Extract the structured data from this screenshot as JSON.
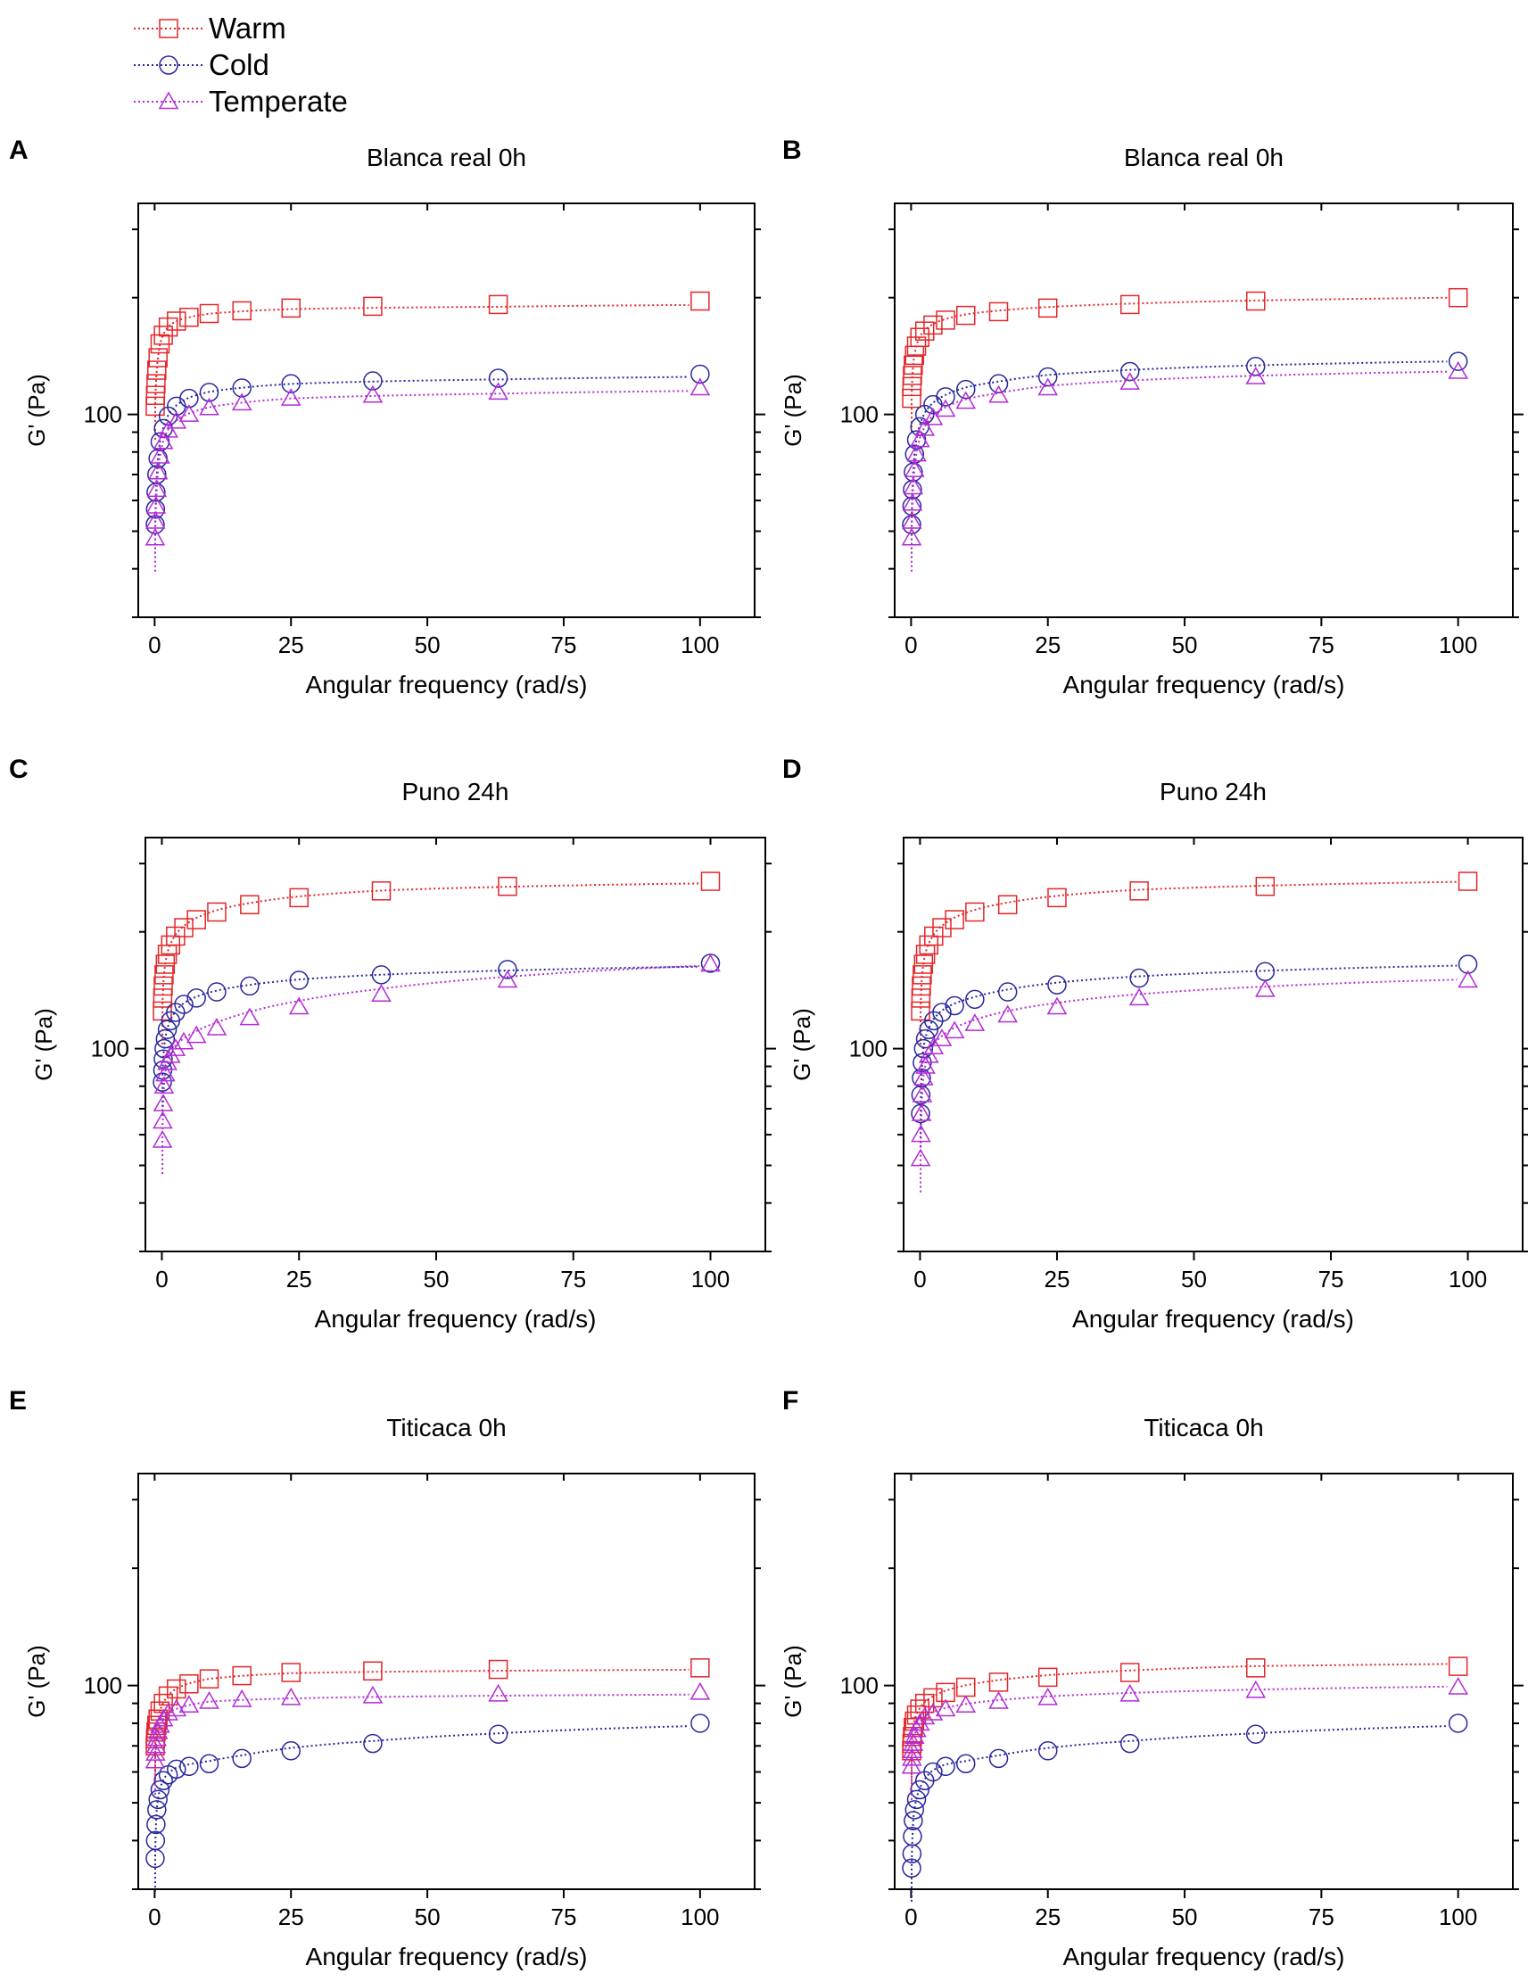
{
  "figure": {
    "legend": [
      {
        "name": "Warm",
        "color": "#e3262a",
        "marker": "square"
      },
      {
        "name": "Cold",
        "color": "#27279e",
        "marker": "circle"
      },
      {
        "name": "Temperate",
        "color": "#b32bd6",
        "marker": "triangle"
      }
    ]
  },
  "chart_data": [
    {
      "panel": "A",
      "type": "scatter",
      "title": "Blanca real 0h",
      "xlabel": "Angular frequency (rad/s)",
      "ylabel": "G' (Pa)",
      "xticks": [
        "0",
        "25",
        "50",
        "75",
        "100"
      ],
      "yticks": [
        "100"
      ],
      "xlim": [
        -3,
        110
      ],
      "ylim": [
        30,
        350
      ],
      "yscale": "log",
      "series": [
        {
          "name": "Warm",
          "x": [
            0.1,
            0.16,
            0.25,
            0.4,
            0.63,
            1,
            1.6,
            2.5,
            4,
            6.3,
            10,
            16,
            25,
            40,
            63,
            100
          ],
          "y": [
            105,
            112,
            120,
            130,
            140,
            152,
            160,
            168,
            174,
            178,
            182,
            185,
            188,
            190,
            192,
            196
          ],
          "fit_top": 185
        },
        {
          "name": "Cold",
          "x": [
            0.1,
            0.16,
            0.25,
            0.4,
            0.63,
            1,
            1.6,
            2.5,
            4,
            6.3,
            10,
            16,
            25,
            40,
            63,
            100
          ],
          "y": [
            52,
            57,
            63,
            70,
            77,
            85,
            92,
            99,
            105,
            110,
            114,
            117,
            120,
            122,
            124,
            127
          ],
          "fit_top": 122
        },
        {
          "name": "Temperate",
          "x": [
            0.1,
            0.16,
            0.25,
            0.4,
            0.63,
            1,
            1.6,
            2.5,
            4,
            6.3,
            10,
            16,
            25,
            40,
            63,
            100
          ],
          "y": [
            48,
            53,
            58,
            64,
            71,
            78,
            85,
            91,
            96,
            100,
            104,
            107,
            110,
            112,
            114,
            117
          ],
          "fit_top": 112
        }
      ]
    },
    {
      "panel": "B",
      "type": "scatter",
      "title": "Blanca real 0h",
      "xlabel": "Angular frequency (rad/s)",
      "ylabel": "G' (Pa)",
      "xticks": [
        "0",
        "25",
        "50",
        "75",
        "100"
      ],
      "yticks": [
        "100"
      ],
      "xlim": [
        -3,
        110
      ],
      "ylim": [
        30,
        350
      ],
      "yscale": "log",
      "series": [
        {
          "name": "Warm",
          "x": [
            0.1,
            0.16,
            0.25,
            0.4,
            0.63,
            1,
            1.6,
            2.5,
            4,
            6.3,
            10,
            16,
            25,
            40,
            63,
            100
          ],
          "y": [
            110,
            118,
            126,
            134,
            142,
            150,
            158,
            164,
            170,
            175,
            180,
            184,
            188,
            192,
            196,
            200
          ],
          "fit_top": 200
        },
        {
          "name": "Cold",
          "x": [
            0.1,
            0.16,
            0.25,
            0.4,
            0.63,
            1,
            1.6,
            2.5,
            4,
            6.3,
            10,
            16,
            25,
            40,
            63,
            100
          ],
          "y": [
            52,
            58,
            64,
            71,
            79,
            86,
            93,
            100,
            106,
            111,
            116,
            120,
            125,
            129,
            133,
            137
          ],
          "fit_top": 137
        },
        {
          "name": "Temperate",
          "x": [
            0.1,
            0.16,
            0.25,
            0.4,
            0.63,
            1,
            1.6,
            2.5,
            4,
            6.3,
            10,
            16,
            25,
            40,
            63,
            100
          ],
          "y": [
            48,
            53,
            59,
            65,
            72,
            79,
            86,
            92,
            98,
            103,
            108,
            112,
            117,
            121,
            125,
            129
          ],
          "fit_top": 129
        }
      ]
    },
    {
      "panel": "C",
      "type": "scatter",
      "title": "Puno 24h",
      "xlabel": "Angular frequency (rad/s)",
      "ylabel": "G' (Pa)",
      "xticks": [
        "0",
        "25",
        "50",
        "75",
        "100"
      ],
      "yticks": [
        "100"
      ],
      "xlim": [
        -3,
        110
      ],
      "ylim": [
        30,
        350
      ],
      "yscale": "log",
      "series": [
        {
          "name": "Warm",
          "x": [
            0.1,
            0.16,
            0.25,
            0.4,
            0.63,
            1,
            1.6,
            2.5,
            4,
            6.3,
            10,
            16,
            25,
            40,
            63,
            100
          ],
          "y": [
            125,
            135,
            145,
            155,
            165,
            175,
            185,
            195,
            205,
            215,
            225,
            235,
            245,
            255,
            262,
            270
          ],
          "fit_top": 262
        },
        {
          "name": "Cold",
          "x": [
            0.1,
            0.16,
            0.25,
            0.4,
            0.63,
            1,
            1.6,
            2.5,
            4,
            6.3,
            10,
            16,
            25,
            40,
            63,
            100
          ],
          "y": [
            82,
            88,
            94,
            100,
            106,
            112,
            118,
            124,
            130,
            135,
            140,
            145,
            150,
            155,
            160,
            166
          ],
          "fit_top": 158
        },
        {
          "name": "Temperate",
          "x": [
            0.1,
            0.16,
            0.25,
            0.4,
            0.63,
            1,
            1.6,
            2.5,
            4,
            6.3,
            10,
            16,
            25,
            40,
            63,
            100
          ],
          "y": [
            58,
            65,
            72,
            80,
            86,
            92,
            96,
            100,
            104,
            108,
            113,
            120,
            128,
            138,
            150,
            165
          ],
          "fit_top": 162
        }
      ]
    },
    {
      "panel": "D",
      "type": "scatter",
      "title": "Puno 24h",
      "xlabel": "Angular frequency (rad/s)",
      "ylabel": "G' (Pa)",
      "xticks": [
        "0",
        "25",
        "50",
        "75",
        "100"
      ],
      "yticks": [
        "100"
      ],
      "xlim": [
        -3,
        110
      ],
      "ylim": [
        30,
        350
      ],
      "yscale": "log",
      "series": [
        {
          "name": "Warm",
          "x": [
            0.1,
            0.16,
            0.25,
            0.4,
            0.63,
            1,
            1.6,
            2.5,
            4,
            6.3,
            10,
            16,
            25,
            40,
            63,
            100
          ],
          "y": [
            125,
            135,
            145,
            155,
            165,
            175,
            185,
            195,
            205,
            215,
            225,
            235,
            245,
            255,
            262,
            270
          ],
          "fit_top": 268
        },
        {
          "name": "Cold",
          "x": [
            0.1,
            0.16,
            0.25,
            0.4,
            0.63,
            1,
            1.6,
            2.5,
            4,
            6.3,
            10,
            16,
            25,
            40,
            63,
            100
          ],
          "y": [
            68,
            76,
            84,
            92,
            100,
            106,
            112,
            118,
            124,
            129,
            134,
            140,
            146,
            152,
            158,
            165
          ],
          "fit_top": 162
        },
        {
          "name": "Temperate",
          "x": [
            0.1,
            0.16,
            0.25,
            0.4,
            0.63,
            1,
            1.6,
            2.5,
            4,
            6.3,
            10,
            16,
            25,
            40,
            63,
            100
          ],
          "y": [
            52,
            60,
            68,
            76,
            84,
            90,
            96,
            101,
            106,
            111,
            116,
            122,
            128,
            135,
            142,
            150
          ],
          "fit_top": 152
        }
      ]
    },
    {
      "panel": "E",
      "type": "scatter",
      "title": "Titicaca 0h",
      "xlabel": "Angular frequency (rad/s)",
      "ylabel": "G' (Pa)",
      "xticks": [
        "0",
        "25",
        "50",
        "75",
        "100"
      ],
      "yticks": [
        "100"
      ],
      "xlim": [
        -3,
        110
      ],
      "ylim": [
        30,
        350
      ],
      "yscale": "log",
      "series": [
        {
          "name": "Warm",
          "x": [
            0.1,
            0.16,
            0.25,
            0.4,
            0.63,
            1,
            1.6,
            2.5,
            4,
            6.3,
            10,
            16,
            25,
            40,
            63,
            100
          ],
          "y": [
            70,
            73,
            76,
            79,
            82,
            86,
            90,
            94,
            98,
            101,
            104,
            106,
            108,
            109,
            110,
            111
          ],
          "fit_top": 108
        },
        {
          "name": "Cold",
          "x": [
            0.1,
            0.16,
            0.25,
            0.4,
            0.63,
            1,
            1.6,
            2.5,
            4,
            6.3,
            10,
            16,
            25,
            40,
            63,
            100
          ],
          "y": [
            36,
            40,
            44,
            48,
            51,
            54,
            57,
            59,
            61,
            62,
            63,
            65,
            68,
            71,
            75,
            80
          ],
          "fit_top": 77
        },
        {
          "name": "Temperate",
          "x": [
            0.1,
            0.16,
            0.25,
            0.4,
            0.63,
            1,
            1.6,
            2.5,
            4,
            6.3,
            10,
            16,
            25,
            40,
            63,
            100
          ],
          "y": [
            64,
            67,
            70,
            73,
            76,
            79,
            82,
            85,
            87,
            89,
            91,
            92,
            93,
            94,
            95,
            96
          ],
          "fit_top": 93
        }
      ]
    },
    {
      "panel": "F",
      "type": "scatter",
      "title": "Titicaca 0h",
      "xlabel": "Angular frequency (rad/s)",
      "ylabel": "G' (Pa)",
      "xticks": [
        "0",
        "25",
        "50",
        "75",
        "100"
      ],
      "yticks": [
        "100"
      ],
      "xlim": [
        -3,
        110
      ],
      "ylim": [
        30,
        350
      ],
      "yscale": "log",
      "series": [
        {
          "name": "Warm",
          "x": [
            0.1,
            0.16,
            0.25,
            0.4,
            0.63,
            1,
            1.6,
            2.5,
            4,
            6.3,
            10,
            16,
            25,
            40,
            63,
            100
          ],
          "y": [
            68,
            71,
            74,
            78,
            81,
            84,
            87,
            90,
            93,
            96,
            99,
            102,
            105,
            108,
            111,
            112
          ],
          "fit_top": 116
        },
        {
          "name": "Cold",
          "x": [
            0.1,
            0.16,
            0.25,
            0.4,
            0.63,
            1,
            1.6,
            2.5,
            4,
            6.3,
            10,
            16,
            25,
            40,
            63,
            100
          ],
          "y": [
            34,
            37,
            41,
            45,
            48,
            51,
            54,
            57,
            60,
            62,
            63,
            65,
            68,
            71,
            75,
            80
          ],
          "fit_top": 77
        },
        {
          "name": "Temperate",
          "x": [
            0.1,
            0.16,
            0.25,
            0.4,
            0.63,
            1,
            1.6,
            2.5,
            4,
            6.3,
            10,
            16,
            25,
            40,
            63,
            100
          ],
          "y": [
            62,
            65,
            68,
            71,
            74,
            77,
            80,
            83,
            85,
            87,
            89,
            91,
            93,
            95,
            97,
            99
          ],
          "fit_top": 100
        }
      ]
    }
  ]
}
